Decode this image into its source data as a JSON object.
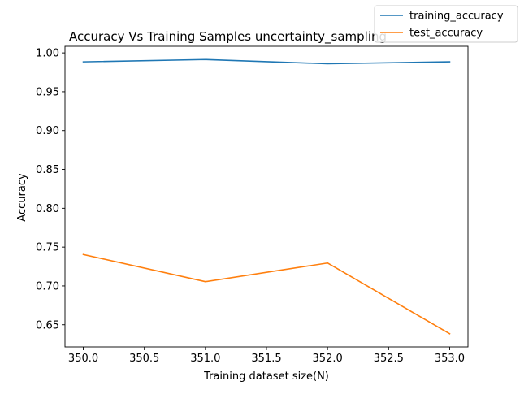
{
  "chart_data": {
    "type": "line",
    "title": "Accuracy Vs Training Samples  uncertainty_sampling",
    "xlabel": "Training dataset size(N)",
    "ylabel": "Accuracy",
    "x": [
      350,
      351,
      352,
      353
    ],
    "xlim": [
      349.85,
      353.15
    ],
    "ylim": [
      0.6215,
      1.0085
    ],
    "xticks": [
      350.0,
      350.5,
      351.0,
      351.5,
      352.0,
      352.5,
      353.0
    ],
    "xtick_labels": [
      "350.0",
      "350.5",
      "351.0",
      "351.5",
      "352.0",
      "352.5",
      "353.0"
    ],
    "yticks": [
      0.65,
      0.7,
      0.75,
      0.8,
      0.85,
      0.9,
      0.95,
      1.0
    ],
    "ytick_labels": [
      "0.65",
      "0.70",
      "0.75",
      "0.80",
      "0.85",
      "0.90",
      "0.95",
      "1.00"
    ],
    "grid": false,
    "legend_position": "top-right",
    "series": [
      {
        "name": "training_accuracy",
        "color": "#1f77b4",
        "values": [
          0.9885,
          0.9915,
          0.986,
          0.9885
        ]
      },
      {
        "name": "test_accuracy",
        "color": "#ff7f0e",
        "values": [
          0.7405,
          0.7055,
          0.7295,
          0.6385
        ]
      }
    ]
  }
}
